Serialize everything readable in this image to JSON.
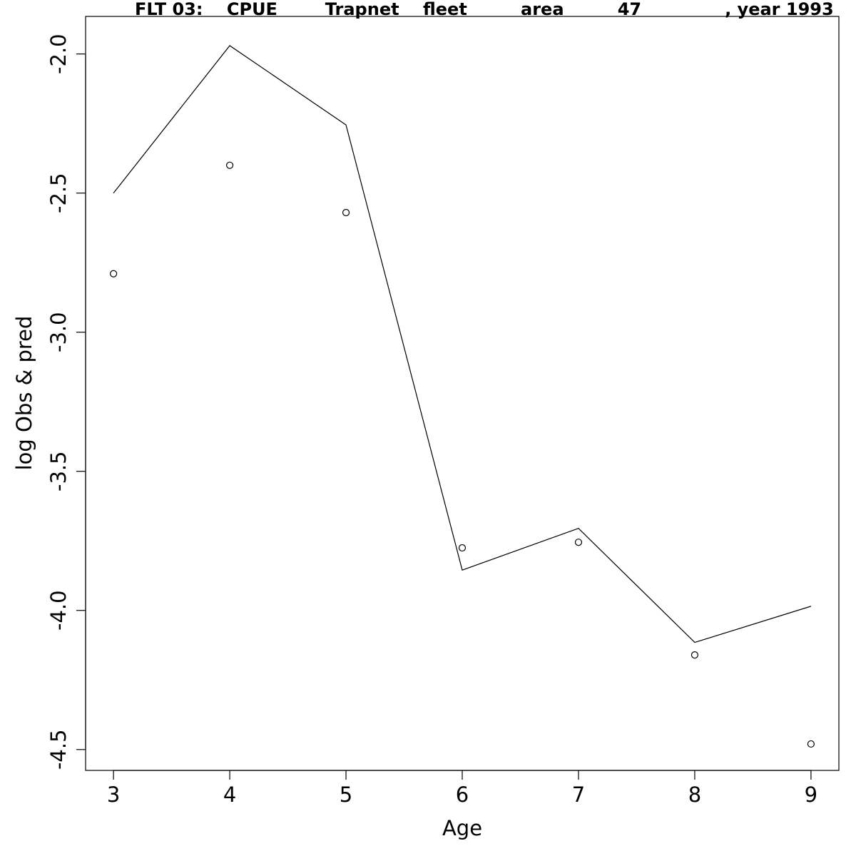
{
  "chart_data": {
    "type": "line",
    "title": "FLT 03:    CPUE        Trapnet    fleet         area         47              , year 1993",
    "xlabel": "Age",
    "ylabel": "log Obs & pred",
    "x": [
      3,
      4,
      5,
      6,
      7,
      8,
      9
    ],
    "x_ticks": [
      "3",
      "4",
      "5",
      "6",
      "7",
      "8",
      "9"
    ],
    "y_ticks": [
      "-2.0",
      "-2.5",
      "-3.0",
      "-3.5",
      "-4.0",
      "-4.5"
    ],
    "xlim": [
      2.76,
      9.24
    ],
    "ylim": [
      -4.575,
      -1.865
    ],
    "grid": false,
    "series": [
      {
        "style": "line",
        "values": [
          -2.5,
          -1.97,
          -2.255,
          -3.855,
          -3.705,
          -4.115,
          -3.985
        ]
      },
      {
        "style": "points",
        "marker": "open-circle",
        "values": [
          -2.79,
          -2.4,
          -2.57,
          -3.775,
          -3.755,
          -4.16,
          -4.48
        ]
      }
    ]
  }
}
